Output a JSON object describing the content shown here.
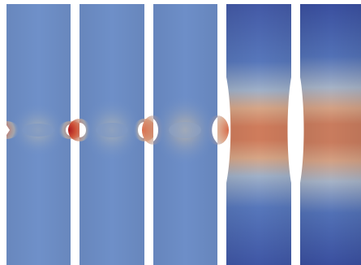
{
  "figure": {
    "specimens": [
      {
        "id": "s1",
        "notch": "sharp",
        "necking": 0.0,
        "hot_color": "#c33a2e",
        "band_color": "#c9b9a3",
        "base_color": "#6d8fc8"
      },
      {
        "id": "s2",
        "notch": "round",
        "necking": 0.0,
        "hot_color": "#c74d35",
        "band_color": "#cbb8a0",
        "base_color": "#6c8ec7"
      },
      {
        "id": "s3",
        "notch": "round",
        "necking": 0.1,
        "hot_color": "#d06b4c",
        "band_color": "#c8b8a4",
        "base_color": "#6b8dc6"
      },
      {
        "id": "s4",
        "notch": "wide",
        "necking": 0.6,
        "hot_color": "#d07858",
        "band_color": "#c9b6a2",
        "base_color": "#3f5aa8"
      },
      {
        "id": "s5",
        "notch": "wide",
        "necking": 1.0,
        "hot_color": "#c97a5c",
        "band_color": "#c4b2a0",
        "base_color": "#3a51a2"
      }
    ],
    "colormap": [
      "#3b4ca0",
      "#6c8ec7",
      "#c9b9a3",
      "#d07858",
      "#b01818"
    ]
  }
}
